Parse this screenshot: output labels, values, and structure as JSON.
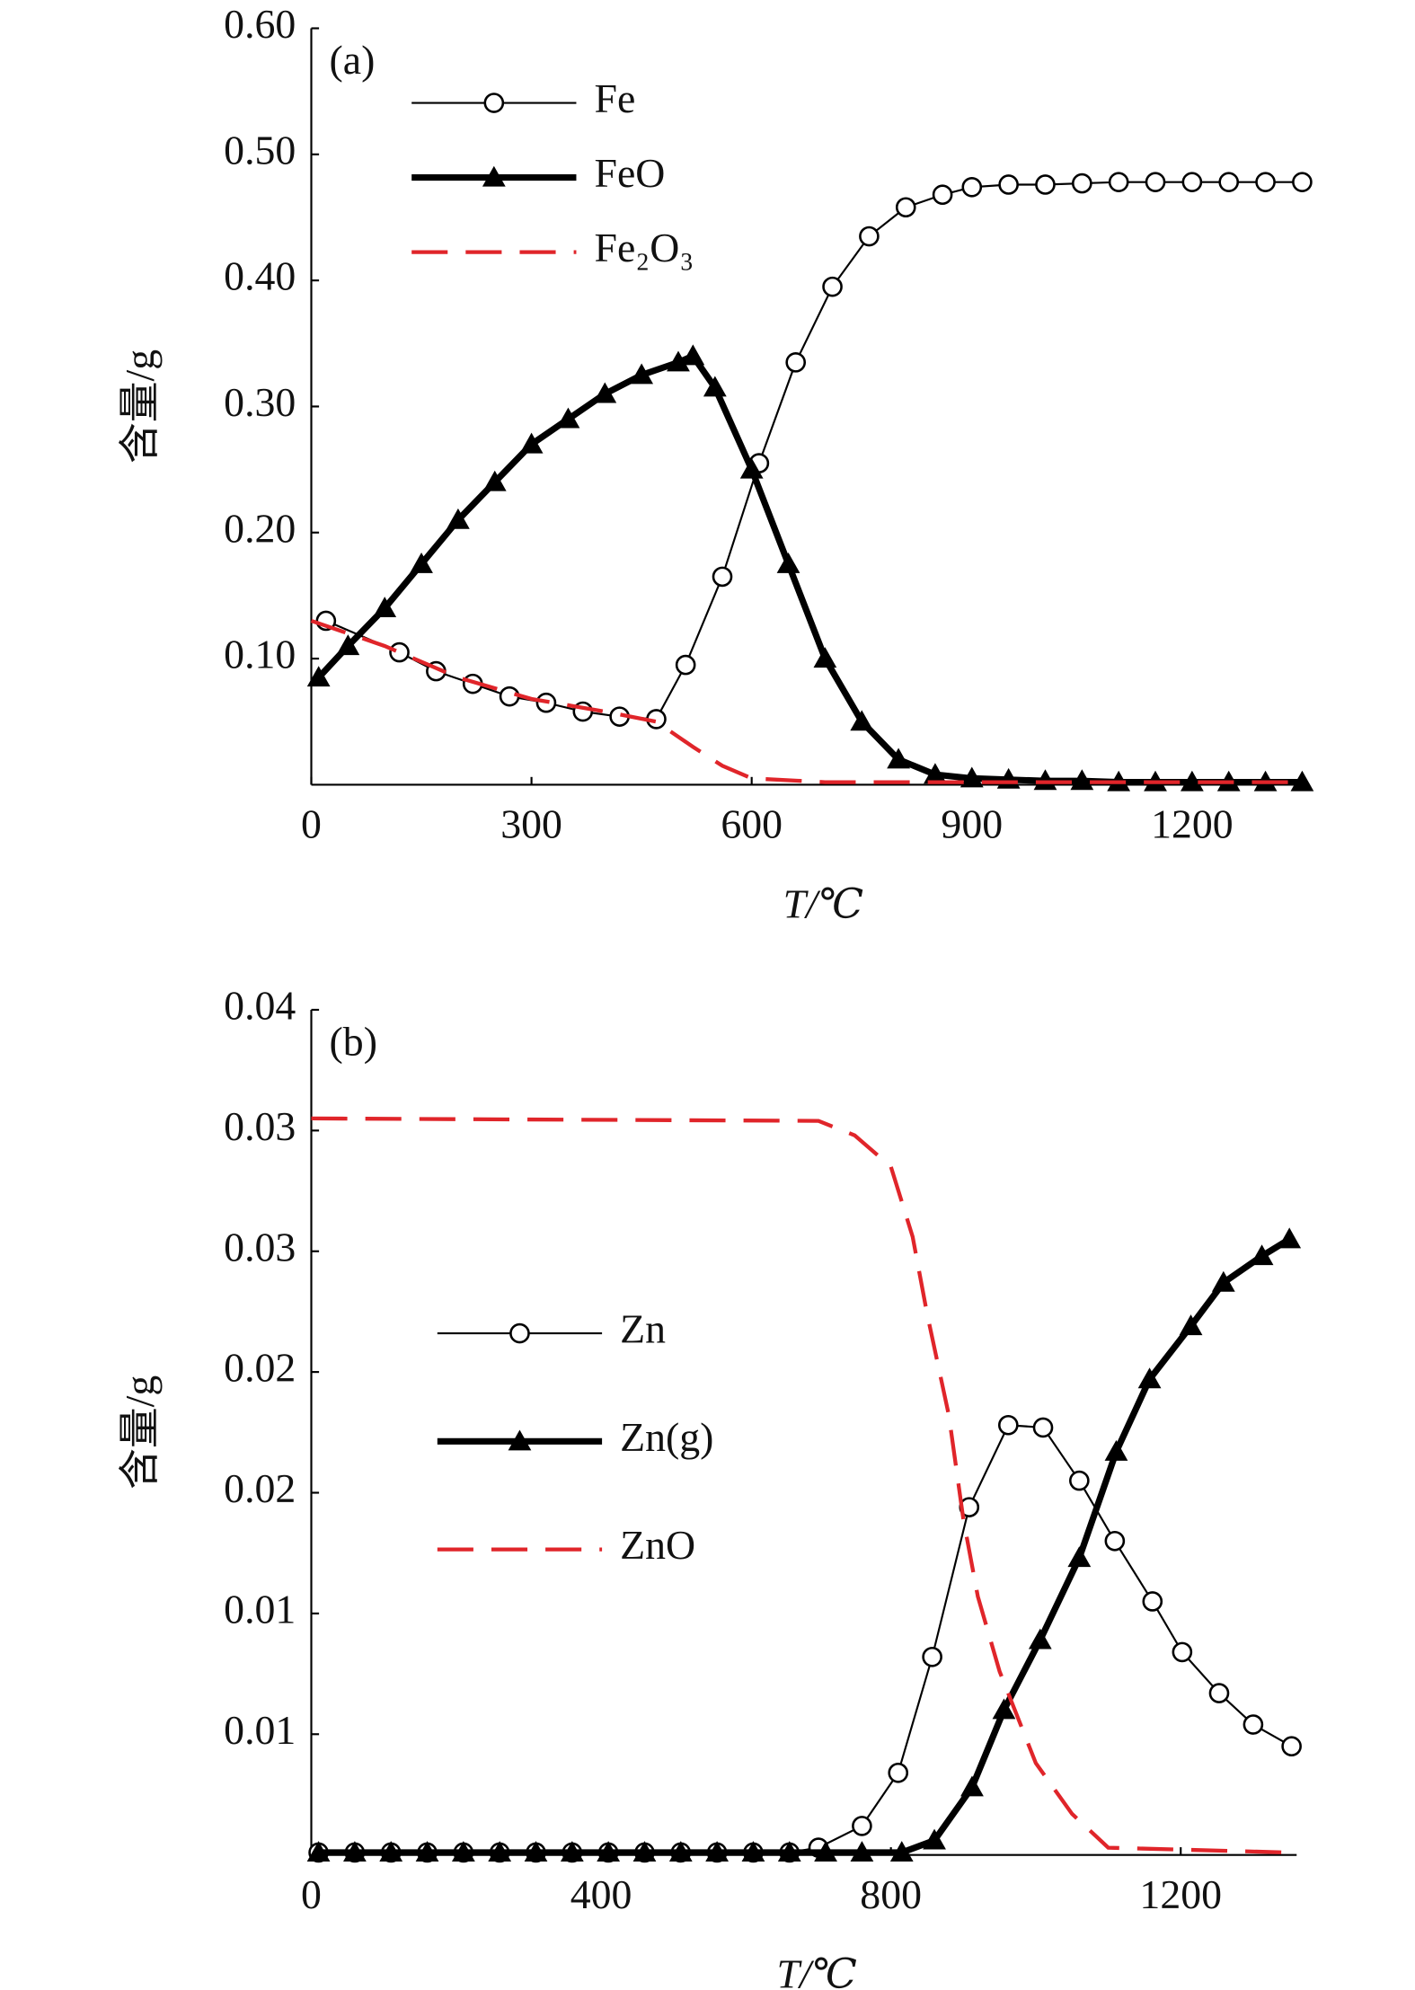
{
  "chart_data": [
    {
      "type": "line",
      "annotation": "(a)",
      "xlabel": "T/℃",
      "ylabel": "含量/g",
      "xlim": [
        0,
        1360
      ],
      "xticks": [
        0,
        300,
        600,
        900,
        1200
      ],
      "ylim": [
        0,
        0.6
      ],
      "yticks": [
        {
          "value": 0.1,
          "label": "0.10"
        },
        {
          "value": 0.2,
          "label": "0.20"
        },
        {
          "value": 0.3,
          "label": "0.30"
        },
        {
          "value": 0.4,
          "label": "0.40"
        },
        {
          "value": 0.5,
          "label": "0.50"
        },
        {
          "value": 0.6,
          "label": "0.60"
        }
      ],
      "legend": "upper left",
      "series": [
        {
          "name": "Fe",
          "color": "#000000",
          "marker": "circle",
          "dashed": false,
          "x": [
            20,
            120,
            170,
            220,
            270,
            320,
            370,
            420,
            470,
            510,
            560,
            610,
            660,
            710,
            760,
            810,
            860,
            900,
            950,
            1000,
            1050,
            1100,
            1150,
            1200,
            1250,
            1300,
            1350
          ],
          "values": [
            0.13,
            0.105,
            0.09,
            0.08,
            0.07,
            0.065,
            0.058,
            0.054,
            0.052,
            0.095,
            0.165,
            0.255,
            0.335,
            0.395,
            0.435,
            0.458,
            0.468,
            0.474,
            0.476,
            0.476,
            0.477,
            0.478,
            0.478,
            0.478,
            0.478,
            0.478,
            0.478
          ]
        },
        {
          "name": "FeO",
          "color": "#000000",
          "marker": "triangle",
          "dashed": false,
          "x": [
            10,
            50,
            100,
            150,
            200,
            250,
            300,
            350,
            400,
            450,
            500,
            520,
            550,
            600,
            650,
            700,
            750,
            800,
            850,
            900,
            950,
            1000,
            1050,
            1100,
            1150,
            1200,
            1250,
            1300,
            1350
          ],
          "values": [
            0.085,
            0.11,
            0.14,
            0.175,
            0.21,
            0.24,
            0.27,
            0.29,
            0.31,
            0.325,
            0.335,
            0.34,
            0.315,
            0.25,
            0.175,
            0.1,
            0.05,
            0.02,
            0.008,
            0.005,
            0.004,
            0.003,
            0.003,
            0.002,
            0.002,
            0.002,
            0.002,
            0.002,
            0.002
          ]
        },
        {
          "name": "Fe₂O₃",
          "color": "#e0252a",
          "marker": null,
          "dashed": true,
          "x": [
            0,
            50,
            100,
            200,
            300,
            400,
            470,
            520,
            560,
            600,
            700,
            1350
          ],
          "values": [
            0.13,
            0.12,
            0.11,
            0.085,
            0.068,
            0.058,
            0.05,
            0.03,
            0.015,
            0.005,
            0.002,
            0.002
          ]
        }
      ]
    },
    {
      "type": "line",
      "annotation": "(b)",
      "xlabel": "T/℃",
      "ylabel": "含量/g",
      "xlim": [
        0,
        1360
      ],
      "xticks": [
        0,
        400,
        800,
        1200
      ],
      "ylim": [
        0,
        0.035
      ],
      "yticks": [
        {
          "value": 0.005,
          "label": "0.01"
        },
        {
          "value": 0.01,
          "label": "0.01"
        },
        {
          "value": 0.015,
          "label": "0.02"
        },
        {
          "value": 0.02,
          "label": "0.02"
        },
        {
          "value": 0.025,
          "label": "0.03"
        },
        {
          "value": 0.03,
          "label": "0.03"
        },
        {
          "value": 0.035,
          "label": "0.04"
        }
      ],
      "legend": "center left",
      "series": [
        {
          "name": "Zn",
          "color": "#000000",
          "marker": "circle",
          "dashed": false,
          "x": [
            10,
            60,
            110,
            160,
            210,
            260,
            310,
            360,
            410,
            460,
            510,
            560,
            610,
            660,
            700,
            760,
            810,
            857,
            908,
            962,
            1010,
            1060,
            1109,
            1161,
            1202,
            1253,
            1300,
            1353
          ],
          "values": [
            0.0001,
            0.0001,
            0.0001,
            0.0001,
            0.0001,
            0.0001,
            0.0001,
            0.0001,
            0.0001,
            0.0001,
            0.0001,
            0.0001,
            0.0001,
            0.0001,
            0.0003,
            0.0012,
            0.0034,
            0.0082,
            0.0144,
            0.0178,
            0.0177,
            0.0155,
            0.013,
            0.0105,
            0.0084,
            0.0067,
            0.0054,
            0.0045
          ]
        },
        {
          "name": "Zn(g)",
          "color": "#000000",
          "marker": "triangle",
          "dashed": false,
          "x": [
            10,
            60,
            110,
            160,
            210,
            260,
            310,
            360,
            410,
            460,
            510,
            560,
            610,
            660,
            710,
            760,
            815,
            860,
            912,
            956,
            1006,
            1060,
            1111,
            1157,
            1214,
            1259,
            1312,
            1350
          ],
          "values": [
            0.0001,
            0.0001,
            0.0001,
            0.0001,
            0.0001,
            0.0001,
            0.0001,
            0.0001,
            0.0001,
            0.0001,
            0.0001,
            0.0001,
            0.0001,
            0.0001,
            0.0001,
            0.0001,
            0.0001,
            0.0006,
            0.0028,
            0.006,
            0.0089,
            0.0123,
            0.0167,
            0.0197,
            0.0219,
            0.0237,
            0.0248,
            0.0255
          ]
        },
        {
          "name": "ZnO",
          "color": "#e0252a",
          "marker": null,
          "dashed": true,
          "x": [
            0,
            700,
            750,
            800,
            830,
            850,
            880,
            900,
            920,
            950,
            1000,
            1050,
            1100,
            1350
          ],
          "values": [
            0.0305,
            0.0304,
            0.0298,
            0.0285,
            0.0256,
            0.0224,
            0.0182,
            0.0139,
            0.0107,
            0.0076,
            0.0038,
            0.0017,
            0.0003,
            0.0001
          ]
        }
      ]
    }
  ]
}
